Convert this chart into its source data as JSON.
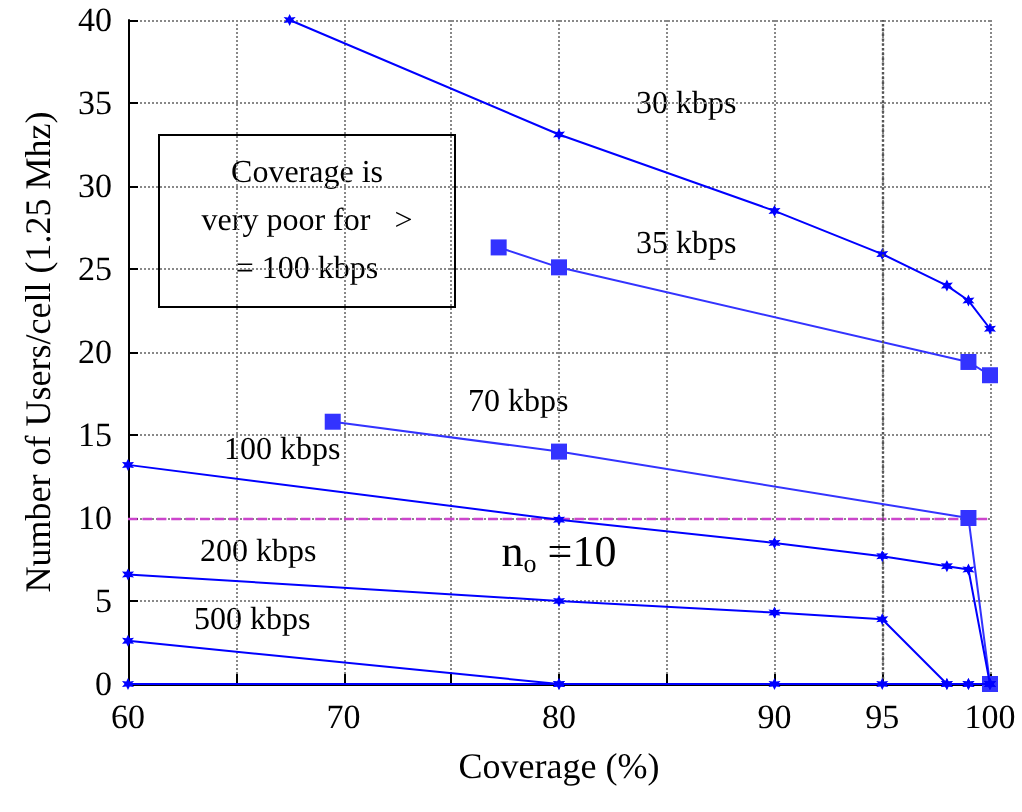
{
  "chart_data": {
    "type": "line",
    "xlabel": "Coverage (%)",
    "ylabel": "Number of Users/cell (1.25 Mhz)",
    "xlim": [
      60,
      100
    ],
    "xticks": [
      60,
      {
        "value": 65,
        "label": null
      },
      70,
      {
        "value": 75,
        "label": null
      },
      80,
      {
        "value": 85,
        "label": null
      },
      90,
      95,
      100
    ],
    "ylim": [
      0,
      40
    ],
    "yticks": [
      0,
      5,
      10,
      15,
      20,
      25,
      30,
      35,
      40
    ],
    "grid": true,
    "line_style": "solid",
    "series": [
      {
        "color": "#0000ff",
        "marker": "cross",
        "x": [
          67.5,
          80,
          90,
          95,
          98,
          99,
          100
        ],
        "values": [
          40,
          33.1,
          28.5,
          25.9,
          24,
          23.1,
          21.4
        ]
      },
      {
        "color": "#3333ff",
        "marker": "square",
        "x": [
          77.2,
          80,
          99,
          100
        ],
        "values": [
          26.3,
          25.1,
          19.4,
          18.6
        ]
      },
      {
        "color": "#3333ff",
        "marker": "square",
        "x": [
          69.5,
          80,
          99,
          100
        ],
        "values": [
          15.8,
          14,
          10,
          0
        ]
      },
      {
        "color": "#0000ff",
        "marker": "cross",
        "x": [
          60,
          80,
          90,
          95,
          98,
          99,
          100
        ],
        "values": [
          13.2,
          9.9,
          8.5,
          7.7,
          7.1,
          6.9,
          0
        ]
      },
      {
        "color": "#0000ff",
        "marker": "cross",
        "x": [
          60,
          80,
          90,
          95,
          98,
          99,
          100
        ],
        "values": [
          6.6,
          5,
          4.3,
          3.9,
          0,
          0,
          0
        ]
      },
      {
        "color": "#0000ff",
        "marker": "cross",
        "x": [
          60,
          80
        ],
        "values": [
          2.6,
          0
        ]
      },
      {
        "color": "#0000ff",
        "marker": "cross",
        "x": [
          60,
          80,
          90,
          95,
          98,
          99,
          100
        ],
        "values": [
          0,
          0,
          0,
          0,
          0,
          0,
          0
        ]
      }
    ],
    "ref_lines": [
      {
        "axis": "y",
        "value": 10,
        "label": "n$_{o}$ =10",
        "color": "#cc44cc",
        "line_style": "dashed"
      },
      {
        "axis": "x",
        "value": 95,
        "label": null,
        "color": "#555555",
        "line_style": "dotted"
      }
    ],
    "annotations": [
      "Coverage is very poor for   > = 100 kbps",
      "30 kbps",
      "35 kbps",
      "70 kbps",
      "100 kbps",
      "200 kbps",
      "500 kbps"
    ]
  }
}
